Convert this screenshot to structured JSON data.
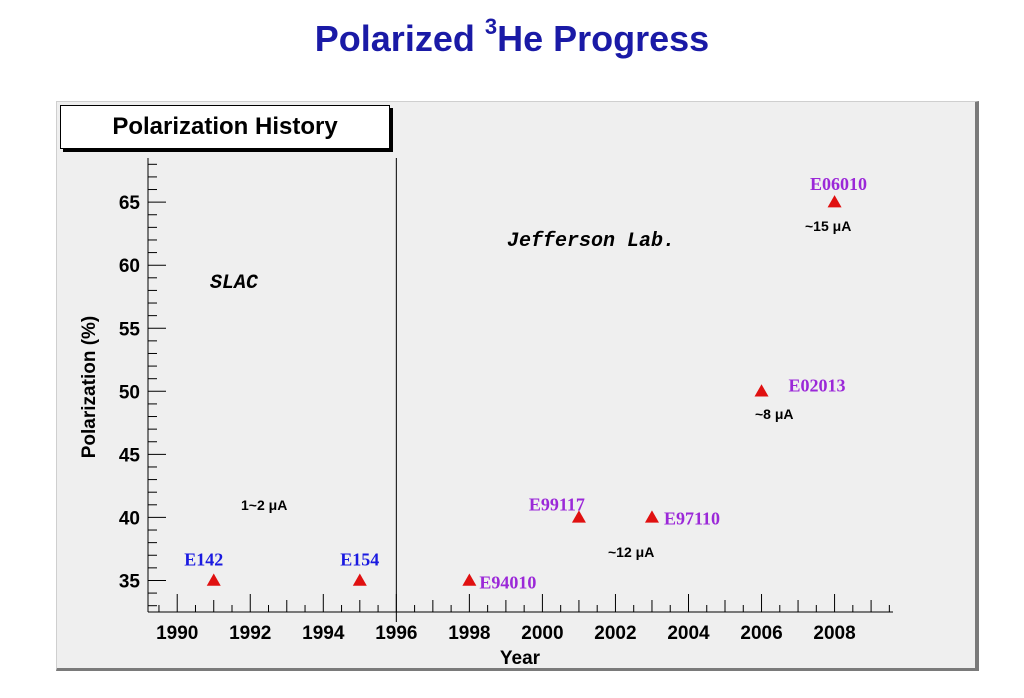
{
  "header": {
    "title_main": "Polarized ",
    "title_sup": "3",
    "title_rest": "He Progress"
  },
  "colors": {
    "title": "#1a1aa6",
    "marker": "#e01010",
    "slac_label": "#1a1ae0",
    "jlab_label": "#9b28d8"
  },
  "chart_data": {
    "type": "scatter",
    "title": "Polarization History",
    "xlabel": "Year",
    "ylabel": "Polarization (%)",
    "xlim": [
      1989.2,
      2009.6
    ],
    "ylim": [
      32.5,
      68.5
    ],
    "x_ticks": [
      1990,
      1992,
      1994,
      1996,
      1998,
      2000,
      2002,
      2004,
      2006,
      2008
    ],
    "y_ticks": [
      35,
      40,
      45,
      50,
      55,
      60,
      65
    ],
    "divider_x": 1996,
    "grid": false,
    "regions": [
      "SLAC",
      "Jefferson Lab."
    ],
    "points": [
      {
        "x": 1991,
        "y": 35,
        "label": "E142",
        "group": "slac"
      },
      {
        "x": 1995,
        "y": 35,
        "label": "E154",
        "group": "slac"
      },
      {
        "x": 1998,
        "y": 35,
        "label": "E94010",
        "group": "jlab"
      },
      {
        "x": 2001,
        "y": 40,
        "label": "E99117",
        "group": "jlab"
      },
      {
        "x": 2003,
        "y": 40,
        "label": "E97110",
        "group": "jlab"
      },
      {
        "x": 2006,
        "y": 50,
        "label": "E02013",
        "group": "jlab"
      },
      {
        "x": 2008,
        "y": 65,
        "label": "E06010",
        "group": "jlab"
      }
    ],
    "annotations": [
      "1~2 μA",
      "~12 μA",
      "~8 μA",
      "~15 μA"
    ]
  }
}
